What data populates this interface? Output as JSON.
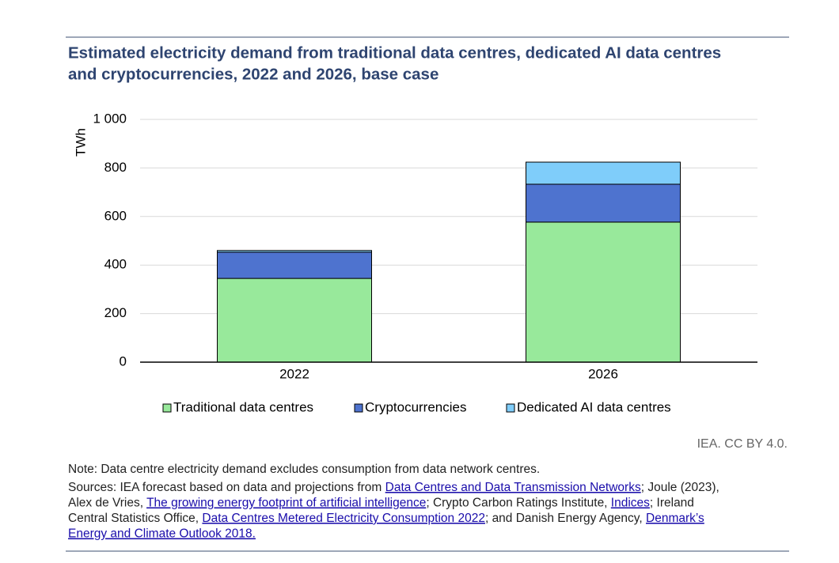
{
  "chart_data": {
    "type": "stacked_bar",
    "title_lines": [
      "Estimated electricity demand from traditional data centres, dedicated AI data centres",
      "and cryptocurrencies, 2022 and 2026, base case"
    ],
    "y_label": "TWh",
    "categories": [
      "2022",
      "2026"
    ],
    "series": [
      {
        "name": "Traditional data centres",
        "color": "#98e99b",
        "values": [
          345,
          577
        ]
      },
      {
        "name": "Cryptocurrencies",
        "color": "#4e73cf",
        "values": [
          108,
          156
        ]
      },
      {
        "name": "Dedicated AI data centres",
        "color": "#7fcdfa",
        "values": [
          7,
          91
        ]
      }
    ],
    "ylim": [
      0,
      1000
    ],
    "yticks": [
      0,
      200,
      400,
      600,
      800,
      {
        "value": 1000,
        "label": "1 000"
      }
    ],
    "grid": true,
    "credit": "IEA. CC BY 4.0.",
    "note": "Note: Data centre electricity demand excludes consumption from data network centres.",
    "source_lines": [
      [
        {
          "text": "Sources: IEA forecast based on data and projections from ",
          "link": false
        },
        {
          "text": "Data Centres and Data Transmission Networks",
          "link": true
        },
        {
          "text": "; Joule (2023),",
          "link": false
        }
      ],
      [
        {
          "text": "Alex de Vries, ",
          "link": false
        },
        {
          "text": "The growing energy footprint of artificial intelligence",
          "link": true
        },
        {
          "text": "; Crypto Carbon Ratings Institute, ",
          "link": false
        },
        {
          "text": "Indices",
          "link": true
        },
        {
          "text": "; Ireland",
          "link": false
        }
      ],
      [
        {
          "text": "Central Statistics Office, ",
          "link": false
        },
        {
          "text": "Data Centres Metered Electricity Consumption 2022",
          "link": true
        },
        {
          "text": "; and Danish Energy Agency, ",
          "link": false
        },
        {
          "text": "Denmark’s",
          "link": true
        }
      ],
      [
        {
          "text": "Energy and Climate Outlook 2018.",
          "link": true
        }
      ]
    ]
  }
}
